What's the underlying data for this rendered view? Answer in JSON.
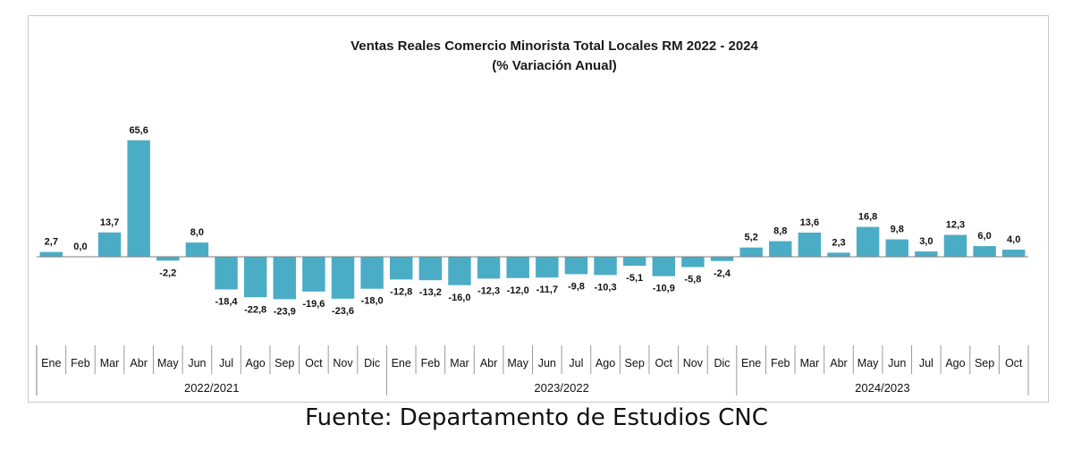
{
  "chart_data": {
    "type": "bar",
    "title": "Ventas Reales Comercio Minorista  Total Locales RM 2022 - 2024",
    "subtitle": "(% Variación Anual)",
    "groups": [
      {
        "name": "2022/2021",
        "months": [
          "Ene",
          "Feb",
          "Mar",
          "Abr",
          "May",
          "Jun",
          "Jul",
          "Ago",
          "Sep",
          "Oct",
          "Nov",
          "Dic"
        ]
      },
      {
        "name": "2023/2022",
        "months": [
          "Ene",
          "Feb",
          "Mar",
          "Abr",
          "May",
          "Jun",
          "Jul",
          "Ago",
          "Sep",
          "Oct",
          "Nov",
          "Dic"
        ]
      },
      {
        "name": "2024/2023",
        "months": [
          "Ene",
          "Feb",
          "Mar",
          "Abr",
          "May",
          "Jun",
          "Jul",
          "Ago",
          "Sep",
          "Oct"
        ]
      }
    ],
    "values": [
      2.7,
      0.0,
      13.7,
      65.6,
      -2.2,
      8.0,
      -18.4,
      -22.8,
      -23.9,
      -19.6,
      -23.6,
      -18.0,
      -12.8,
      -13.2,
      -16.0,
      -12.3,
      -12.0,
      -11.7,
      -9.8,
      -10.3,
      -5.1,
      -10.9,
      -5.8,
      -2.4,
      5.2,
      8.8,
      13.6,
      2.3,
      16.8,
      9.8,
      3.0,
      12.3,
      6.0,
      4.0
    ],
    "value_labels": [
      "2,7",
      "0,0",
      "13,7",
      "65,6",
      "-2,2",
      "8,0",
      "-18,4",
      "-22,8",
      "-23,9",
      "-19,6",
      "-23,6",
      "-18,0",
      "-12,8",
      "-13,2",
      "-16,0",
      "-12,3",
      "-12,0",
      "-11,7",
      "-9,8",
      "-10,3",
      "-5,1",
      "-10,9",
      "-5,8",
      "-2,4",
      "5,2",
      "8,8",
      "13,6",
      "2,3",
      "16,8",
      "9,8",
      "3,0",
      "12,3",
      "6,0",
      "4,0"
    ],
    "bar_color": "#4BACC6",
    "grid": false,
    "legend": "none"
  },
  "source": "Fuente: Departamento de Estudios CNC"
}
